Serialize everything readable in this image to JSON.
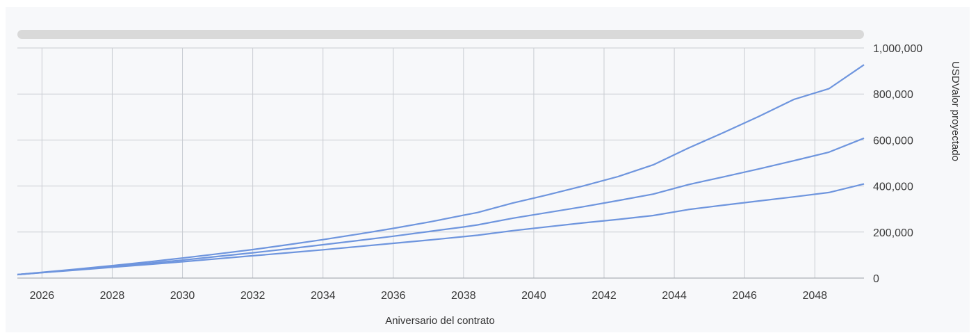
{
  "chart_data": {
    "type": "line",
    "title": "",
    "xlabel": "Aniversario del contrato",
    "ylabel": "USDValor proyectado",
    "x": [
      2025.3,
      2026,
      2027,
      2028,
      2029,
      2030,
      2031,
      2032,
      2033,
      2034,
      2035,
      2036,
      2037,
      2038,
      2038.4,
      2039.4,
      2040.4,
      2041.4,
      2042.4,
      2043.4,
      2044.4,
      2045.4,
      2046.4,
      2047.4,
      2048.4,
      2049.4
    ],
    "series": [
      {
        "name": "",
        "values": [
          15000,
          25000,
          39000,
          54000,
          70000,
          87000,
          105000,
          124000,
          145000,
          167000,
          191000,
          216000,
          243000,
          273000,
          285000,
          326000,
          362000,
          400000,
          441000,
          492000,
          565000,
          632000,
          702000,
          776000,
          823000,
          927000
        ]
      },
      {
        "name": "",
        "values": [
          15000,
          24000,
          37000,
          50000,
          64000,
          78000,
          94000,
          110000,
          127000,
          145000,
          163000,
          182000,
          202000,
          222000,
          231000,
          260000,
          285000,
          310000,
          337000,
          365000,
          406000,
          440000,
          474000,
          510000,
          547000,
          608000
        ]
      },
      {
        "name": "",
        "values": [
          15000,
          24000,
          35000,
          47000,
          59000,
          71000,
          84000,
          97000,
          110000,
          123000,
          137000,
          151000,
          165000,
          180000,
          186000,
          206000,
          223000,
          240000,
          255000,
          272000,
          298000,
          317000,
          335000,
          353000,
          372000,
          409000
        ]
      }
    ],
    "x_ticks": [
      "2026",
      "2028",
      "2030",
      "2032",
      "2034",
      "2036",
      "2038",
      "2040",
      "2042",
      "2044",
      "2046",
      "2048"
    ],
    "x_tick_values": [
      2026,
      2028,
      2030,
      2032,
      2034,
      2036,
      2038,
      2040,
      2042,
      2044,
      2046,
      2048
    ],
    "y_ticks": [
      "0",
      "200,000",
      "400,000",
      "600,000",
      "800,000",
      "1,000,000"
    ],
    "y_tick_values": [
      0,
      200000,
      400000,
      600000,
      800000,
      1000000
    ],
    "xlim": [
      2025.3,
      2049.4
    ],
    "ylim": [
      0,
      1000000
    ],
    "y_axis_side": "right",
    "grid": true,
    "line_color": "#6e95de",
    "grid_color": "#c9ccd2"
  }
}
